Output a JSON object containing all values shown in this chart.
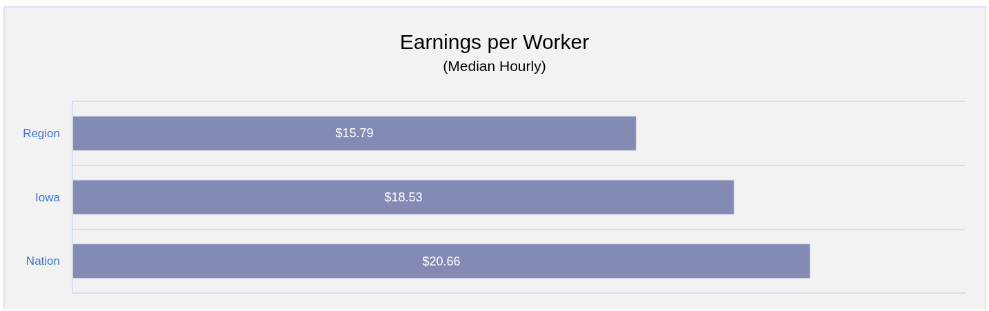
{
  "chart_data": {
    "type": "bar",
    "orientation": "horizontal",
    "title": "Earnings per Worker",
    "subtitle": "(Median Hourly)",
    "categories": [
      "Region",
      "Iowa",
      "Nation"
    ],
    "values": [
      15.79,
      18.53,
      20.66
    ],
    "value_labels": [
      "$15.79",
      "$18.53",
      "$20.66"
    ],
    "color": "#838bb5",
    "grid": "y",
    "tick_labels": "y"
  }
}
